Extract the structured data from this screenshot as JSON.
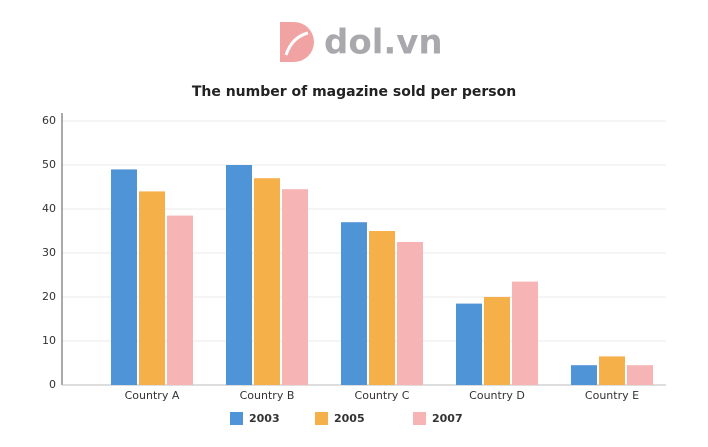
{
  "logo": "dol.vn",
  "chart_data": {
    "type": "bar",
    "title": "The number of magazine sold per person",
    "categories": [
      "Country A",
      "Country B",
      "Country C",
      "Country D",
      "Country E"
    ],
    "series": [
      {
        "name": "2003",
        "color": "#4f94d6",
        "values": [
          49,
          50,
          37,
          18.5,
          4.5
        ]
      },
      {
        "name": "2005",
        "color": "#f6b04a",
        "values": [
          44,
          47,
          35,
          20,
          6.5
        ]
      },
      {
        "name": "2007",
        "color": "#f6b4b4",
        "values": [
          38.5,
          44.5,
          32.5,
          23.5,
          4.5
        ]
      }
    ],
    "ylim": [
      0,
      60
    ],
    "yticks": [
      0,
      10,
      20,
      30,
      40,
      50,
      60
    ],
    "grid": true,
    "legend": "bottom"
  }
}
